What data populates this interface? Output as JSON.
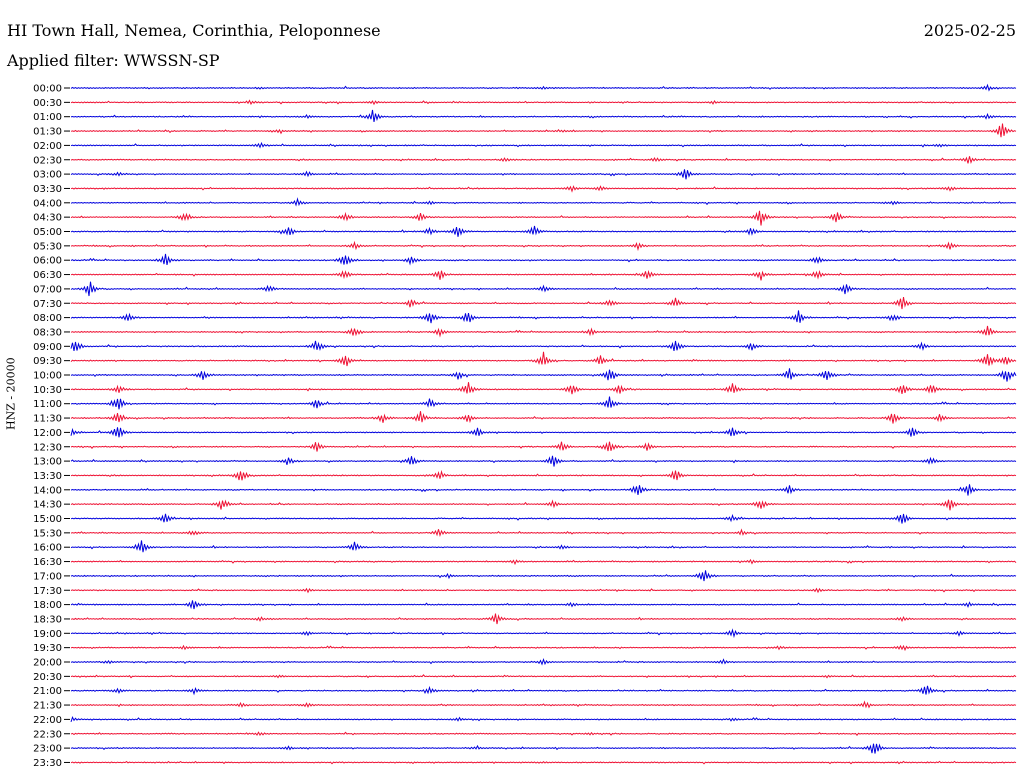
{
  "header": {
    "station": "HI Town Hall, Nemea, Corinthia, Peloponnese",
    "date": "2025-02-25",
    "filter": "Applied filter: WWSSN-SP"
  },
  "chart_data": {
    "type": "line",
    "title": "HI Town Hall, Nemea, Corinthia, Peloponnese",
    "ylabel": "HNZ - 20000",
    "colors": [
      "#0000dd",
      "#ee1133"
    ],
    "rows": [
      {
        "label": "00:00",
        "bursts": [
          [
            0.97,
            0.3
          ],
          [
            0.5,
            0.15
          ],
          [
            0.2,
            0.1
          ]
        ]
      },
      {
        "label": "00:30",
        "bursts": [
          [
            0.19,
            0.25
          ],
          [
            0.32,
            0.2
          ],
          [
            0.68,
            0.15
          ]
        ]
      },
      {
        "label": "01:00",
        "bursts": [
          [
            0.32,
            0.9
          ],
          [
            0.25,
            0.2
          ],
          [
            0.97,
            0.25
          ]
        ]
      },
      {
        "label": "01:30",
        "bursts": [
          [
            0.985,
            1.0
          ],
          [
            0.22,
            0.15
          ],
          [
            0.52,
            0.15
          ]
        ]
      },
      {
        "label": "02:00",
        "bursts": [
          [
            0.2,
            0.3
          ],
          [
            0.92,
            0.2
          ]
        ]
      },
      {
        "label": "02:30",
        "bursts": [
          [
            0.95,
            0.5
          ],
          [
            0.62,
            0.25
          ],
          [
            0.46,
            0.2
          ]
        ]
      },
      {
        "label": "03:00",
        "bursts": [
          [
            0.65,
            0.8
          ],
          [
            0.25,
            0.3
          ],
          [
            0.05,
            0.2
          ]
        ]
      },
      {
        "label": "03:30",
        "bursts": [
          [
            0.53,
            0.35
          ],
          [
            0.56,
            0.3
          ],
          [
            0.93,
            0.3
          ]
        ]
      },
      {
        "label": "04:00",
        "bursts": [
          [
            0.24,
            0.45
          ],
          [
            0.38,
            0.25
          ],
          [
            0.87,
            0.3
          ]
        ]
      },
      {
        "label": "04:30",
        "bursts": [
          [
            0.73,
            1.0
          ],
          [
            0.81,
            0.7
          ],
          [
            0.12,
            0.55
          ],
          [
            0.29,
            0.5
          ],
          [
            0.37,
            0.55
          ]
        ]
      },
      {
        "label": "05:00",
        "bursts": [
          [
            0.23,
            0.7
          ],
          [
            0.41,
            0.8
          ],
          [
            0.49,
            0.7
          ],
          [
            0.38,
            0.5
          ],
          [
            0.72,
            0.5
          ]
        ]
      },
      {
        "label": "05:30",
        "bursts": [
          [
            0.93,
            0.5
          ],
          [
            0.3,
            0.4
          ],
          [
            0.6,
            0.35
          ]
        ]
      },
      {
        "label": "06:00",
        "bursts": [
          [
            0.1,
            0.8
          ],
          [
            0.29,
            0.95
          ],
          [
            0.36,
            0.55
          ],
          [
            0.79,
            0.5
          ]
        ]
      },
      {
        "label": "06:30",
        "bursts": [
          [
            0.39,
            0.7
          ],
          [
            0.61,
            0.7
          ],
          [
            0.73,
            0.65
          ],
          [
            0.29,
            0.6
          ],
          [
            0.79,
            0.5
          ]
        ]
      },
      {
        "label": "07:00",
        "bursts": [
          [
            0.02,
            1.0
          ],
          [
            0.82,
            0.7
          ],
          [
            0.21,
            0.4
          ],
          [
            0.5,
            0.4
          ]
        ]
      },
      {
        "label": "07:30",
        "bursts": [
          [
            0.88,
            0.9
          ],
          [
            0.64,
            0.6
          ],
          [
            0.36,
            0.55
          ],
          [
            0.57,
            0.5
          ]
        ]
      },
      {
        "label": "08:00",
        "bursts": [
          [
            0.06,
            0.6
          ],
          [
            0.38,
            0.85
          ],
          [
            0.42,
            0.9
          ],
          [
            0.77,
            0.9
          ],
          [
            0.87,
            0.5
          ]
        ]
      },
      {
        "label": "08:30",
        "bursts": [
          [
            0.3,
            0.7
          ],
          [
            0.97,
            0.85
          ],
          [
            0.39,
            0.5
          ],
          [
            0.55,
            0.4
          ]
        ]
      },
      {
        "label": "09:00",
        "bursts": [
          [
            0.005,
            1.0
          ],
          [
            0.26,
            0.8
          ],
          [
            0.64,
            0.8
          ],
          [
            0.72,
            0.5
          ],
          [
            0.9,
            0.5
          ]
        ]
      },
      {
        "label": "09:30",
        "bursts": [
          [
            0.29,
            1.0
          ],
          [
            0.5,
            1.0
          ],
          [
            0.56,
            0.6
          ],
          [
            0.97,
            1.0
          ],
          [
            0.99,
            0.7
          ]
        ]
      },
      {
        "label": "10:00",
        "bursts": [
          [
            0.57,
            0.95
          ],
          [
            0.99,
            1.0
          ],
          [
            0.76,
            0.8
          ],
          [
            0.8,
            0.9
          ],
          [
            0.14,
            0.6
          ],
          [
            0.41,
            0.6
          ]
        ]
      },
      {
        "label": "10:30",
        "bursts": [
          [
            0.42,
            1.0
          ],
          [
            0.53,
            0.8
          ],
          [
            0.88,
            0.9
          ],
          [
            0.91,
            0.8
          ],
          [
            0.7,
            0.7
          ],
          [
            0.58,
            0.6
          ],
          [
            0.05,
            0.5
          ]
        ]
      },
      {
        "label": "11:00",
        "bursts": [
          [
            0.05,
            1.0
          ],
          [
            0.26,
            0.6
          ],
          [
            0.57,
            0.9
          ],
          [
            0.38,
            0.55
          ]
        ]
      },
      {
        "label": "11:30",
        "bursts": [
          [
            0.05,
            0.9
          ],
          [
            0.33,
            0.6
          ],
          [
            0.37,
            0.8
          ],
          [
            0.42,
            0.6
          ],
          [
            0.87,
            0.8
          ],
          [
            0.92,
            0.5
          ]
        ]
      },
      {
        "label": "12:00",
        "bursts": [
          [
            0.05,
            1.0
          ],
          [
            0.0,
            0.55
          ],
          [
            0.43,
            0.6
          ],
          [
            0.7,
            0.6
          ],
          [
            0.89,
            0.6
          ]
        ]
      },
      {
        "label": "12:30",
        "bursts": [
          [
            0.52,
            0.7
          ],
          [
            0.57,
            0.8
          ],
          [
            0.26,
            0.6
          ],
          [
            0.61,
            0.5
          ]
        ]
      },
      {
        "label": "13:00",
        "bursts": [
          [
            0.51,
            0.8
          ],
          [
            0.36,
            0.6
          ],
          [
            0.23,
            0.5
          ],
          [
            0.91,
            0.4
          ]
        ]
      },
      {
        "label": "13:30",
        "bursts": [
          [
            0.18,
            0.85
          ],
          [
            0.64,
            0.8
          ],
          [
            0.39,
            0.5
          ]
        ]
      },
      {
        "label": "14:00",
        "bursts": [
          [
            0.6,
            0.9
          ],
          [
            0.95,
            0.8
          ],
          [
            0.76,
            0.5
          ]
        ]
      },
      {
        "label": "14:30",
        "bursts": [
          [
            0.16,
            0.8
          ],
          [
            0.73,
            0.7
          ],
          [
            0.93,
            0.7
          ],
          [
            0.51,
            0.4
          ]
        ]
      },
      {
        "label": "15:00",
        "bursts": [
          [
            0.1,
            0.6
          ],
          [
            0.88,
            0.8
          ],
          [
            0.7,
            0.4
          ]
        ]
      },
      {
        "label": "15:30",
        "bursts": [
          [
            0.39,
            0.55
          ],
          [
            0.13,
            0.3
          ],
          [
            0.71,
            0.3
          ]
        ]
      },
      {
        "label": "16:00",
        "bursts": [
          [
            0.075,
            0.9
          ],
          [
            0.3,
            0.6
          ],
          [
            0.52,
            0.25
          ]
        ]
      },
      {
        "label": "16:30",
        "bursts": [
          [
            0.47,
            0.25
          ],
          [
            0.72,
            0.2
          ]
        ]
      },
      {
        "label": "17:00",
        "bursts": [
          [
            0.67,
            0.9
          ],
          [
            0.4,
            0.2
          ]
        ]
      },
      {
        "label": "17:30",
        "bursts": [
          [
            0.25,
            0.25
          ],
          [
            0.79,
            0.2
          ]
        ]
      },
      {
        "label": "18:00",
        "bursts": [
          [
            0.13,
            0.8
          ],
          [
            0.53,
            0.25
          ],
          [
            0.95,
            0.25
          ]
        ]
      },
      {
        "label": "18:30",
        "bursts": [
          [
            0.45,
            0.75
          ],
          [
            0.88,
            0.3
          ],
          [
            0.2,
            0.25
          ]
        ]
      },
      {
        "label": "19:00",
        "bursts": [
          [
            0.7,
            0.5
          ],
          [
            0.25,
            0.3
          ],
          [
            0.94,
            0.25
          ]
        ]
      },
      {
        "label": "19:30",
        "bursts": [
          [
            0.88,
            0.35
          ],
          [
            0.12,
            0.2
          ],
          [
            0.75,
            0.2
          ]
        ]
      },
      {
        "label": "20:00",
        "bursts": [
          [
            0.5,
            0.35
          ],
          [
            0.69,
            0.3
          ],
          [
            0.04,
            0.2
          ]
        ]
      },
      {
        "label": "20:30",
        "bursts": [
          [
            0.22,
            0.15
          ],
          [
            0.8,
            0.15
          ]
        ]
      },
      {
        "label": "21:00",
        "bursts": [
          [
            0.905,
            0.85
          ],
          [
            0.38,
            0.4
          ],
          [
            0.13,
            0.3
          ],
          [
            0.05,
            0.25
          ]
        ]
      },
      {
        "label": "21:30",
        "bursts": [
          [
            0.18,
            0.25
          ],
          [
            0.25,
            0.25
          ],
          [
            0.84,
            0.35
          ]
        ]
      },
      {
        "label": "22:00",
        "bursts": [
          [
            0.0,
            0.3
          ],
          [
            0.41,
            0.2
          ],
          [
            0.7,
            0.15
          ]
        ]
      },
      {
        "label": "22:30",
        "bursts": [
          [
            0.2,
            0.2
          ],
          [
            0.55,
            0.15
          ]
        ]
      },
      {
        "label": "23:00",
        "bursts": [
          [
            0.85,
            0.95
          ],
          [
            0.23,
            0.2
          ],
          [
            0.43,
            0.2
          ]
        ]
      },
      {
        "label": "23:30",
        "bursts": [
          [
            0.5,
            0.05
          ]
        ]
      }
    ]
  }
}
